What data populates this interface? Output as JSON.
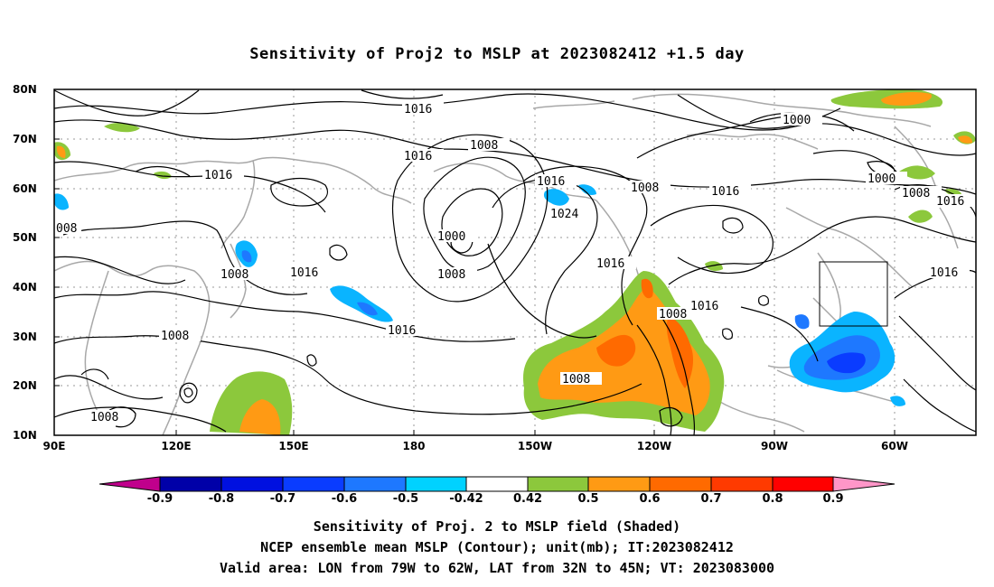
{
  "title": "Sensitivity of Proj2 to MSLP at 2023082412 +1.5 day",
  "lat_labels": [
    "80N",
    "70N",
    "60N",
    "50N",
    "40N",
    "30N",
    "20N",
    "10N"
  ],
  "lon_labels": [
    "90E",
    "120E",
    "150E",
    "180",
    "150W",
    "120W",
    "90W",
    "60W"
  ],
  "contour_labels": [
    "1016",
    "1016",
    "1008",
    "1016",
    "1000",
    "1008",
    "1016",
    "1024",
    "1008",
    "1016",
    "1000",
    "1000",
    "1008",
    "1016",
    "1016",
    "1008",
    "1016",
    "1008",
    "1016",
    "1016",
    "1008",
    "1016",
    "1008",
    "008",
    "1008"
  ],
  "colorbar": {
    "labels": [
      "-0.9",
      "-0.8",
      "-0.7",
      "-0.6",
      "-0.5",
      "-0.42",
      "0.42",
      "0.5",
      "0.6",
      "0.7",
      "0.8",
      "0.9"
    ],
    "colors": [
      "#c0008c",
      "#0000a8",
      "#0010e0",
      "#0a3cff",
      "#1e78ff",
      "#0ab4ff",
      "#00d2ff",
      "#ffffff",
      "#8cc83c",
      "#ff9a14",
      "#ff6a00",
      "#ff3a00",
      "#ff0000",
      "#ff96c8"
    ]
  },
  "caption": {
    "line1": "Sensitivity of Proj. 2 to MSLP field (Shaded)",
    "line2": "NCEP ensemble mean MSLP (Contour); unit(mb); IT:2023082412",
    "line3": "Valid area: LON from 79W to 62W, LAT from 32N to 45N; VT: 2023083000"
  }
}
